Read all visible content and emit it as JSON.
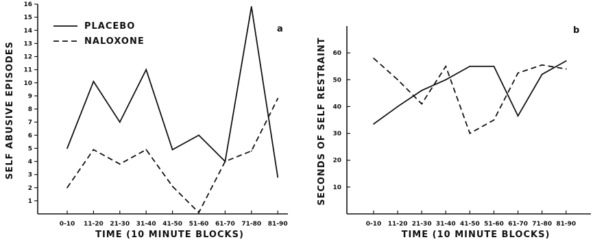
{
  "chart_data": [
    {
      "type": "line",
      "panel_label": "a",
      "categories": [
        "0-10",
        "11-20",
        "21-30",
        "31-40",
        "41-50",
        "51-60",
        "61-70",
        "71-80",
        "81-90"
      ],
      "xlabel": "TIME (10 MINUTE BLOCKS)",
      "ylabel": "SELF ABUSIVE EPISODES",
      "ylim": [
        0,
        16
      ],
      "yticks": [
        1,
        2,
        3,
        4,
        5,
        6,
        7,
        8,
        9,
        10,
        11,
        12,
        13,
        14,
        15,
        16
      ],
      "legend_position": "top-left",
      "grid": false,
      "series": [
        {
          "name": "PLACEBO",
          "style": "solid",
          "values": [
            5,
            10.1,
            7,
            11,
            4.9,
            6,
            4,
            15.8,
            2.8
          ]
        },
        {
          "name": "NALOXONE",
          "style": "dashed",
          "values": [
            2,
            4.9,
            3.8,
            4.9,
            2.1,
            0.1,
            4,
            4.8,
            8.8
          ]
        }
      ]
    },
    {
      "type": "line",
      "panel_label": "b",
      "categories": [
        "0-10",
        "11-20",
        "21-30",
        "31-40",
        "41-50",
        "51-60",
        "61-70",
        "71-80",
        "81-90"
      ],
      "xlabel": "TIME (10 MINUTE BLOCKS)",
      "ylabel": "SECONDS OF SELF RESTRAINT",
      "ylim": [
        0,
        70
      ],
      "yticks": [
        10,
        20,
        30,
        40,
        50,
        60
      ],
      "grid": false,
      "series": [
        {
          "style": "solid",
          "values": [
            33.5,
            40,
            46,
            50,
            55,
            55,
            36.5,
            52,
            57
          ]
        },
        {
          "style": "dashed",
          "values": [
            58,
            50,
            41,
            55,
            30,
            35,
            52.5,
            55.5,
            54
          ]
        }
      ]
    }
  ]
}
